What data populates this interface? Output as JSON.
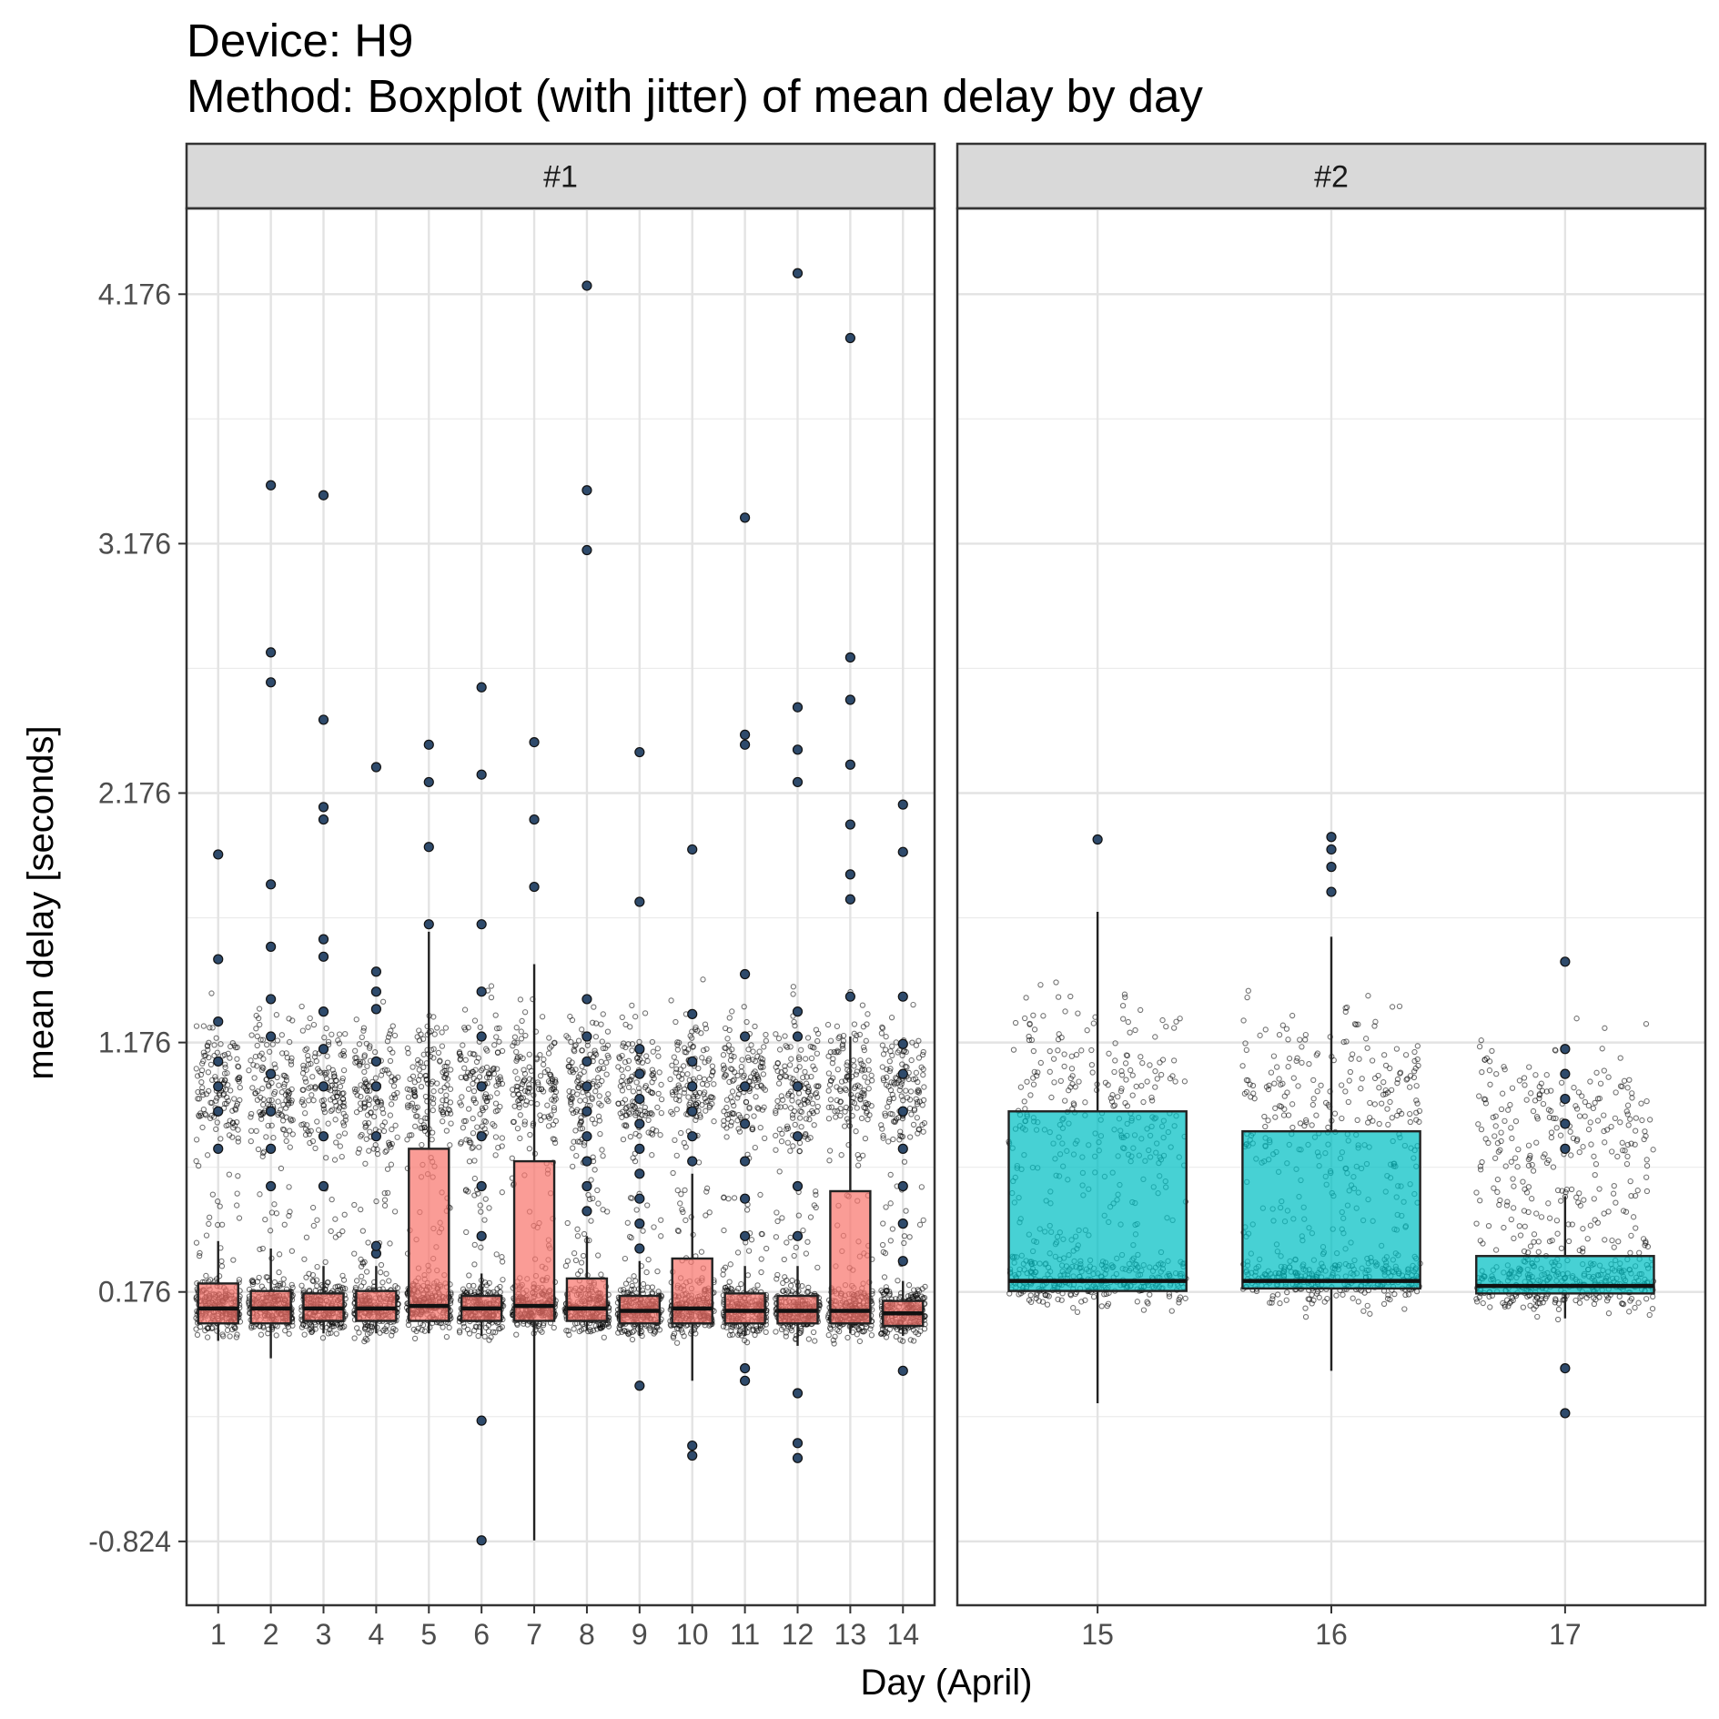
{
  "chart_data": {
    "type": "boxplot",
    "title": "Device: H9",
    "subtitle": "Method: Boxplot (with jitter) of mean delay by day",
    "xlabel": "Day (April)",
    "ylabel": "mean delay [seconds]",
    "ylim": [
      -1.08,
      4.52
    ],
    "yticks": [
      -0.824,
      0.176,
      1.176,
      2.176,
      3.176,
      4.176
    ],
    "ytick_labels": [
      "-0.824",
      "0.176",
      "1.176",
      "2.176",
      "3.176",
      "4.176"
    ],
    "grid": true,
    "colors": {
      "panel1_fill": "#F8766D",
      "panel2_fill": "#00BFC4",
      "outlier": "#2E4A6B",
      "strip_bg": "#D9D9D9"
    },
    "panels": [
      {
        "label": "#1",
        "fill": "#F8766D",
        "categories": [
          "1",
          "2",
          "3",
          "4",
          "5",
          "6",
          "7",
          "8",
          "9",
          "10",
          "11",
          "12",
          "13",
          "14"
        ],
        "boxes": [
          {
            "day": "1",
            "q1": 0.05,
            "median": 0.11,
            "q3": 0.21,
            "whisker_low": -0.02,
            "whisker_high": 0.38,
            "outliers": [
              0.75,
              0.9,
              1.0,
              1.1,
              1.26,
              1.51,
              1.93
            ]
          },
          {
            "day": "2",
            "q1": 0.05,
            "median": 0.11,
            "q3": 0.18,
            "whisker_low": -0.09,
            "whisker_high": 0.35,
            "outliers": [
              0.6,
              0.75,
              0.9,
              1.05,
              1.2,
              1.35,
              1.56,
              1.81,
              2.62,
              2.74,
              3.41
            ]
          },
          {
            "day": "3",
            "q1": 0.06,
            "median": 0.11,
            "q3": 0.17,
            "whisker_low": 0.01,
            "whisker_high": 0.28,
            "outliers": [
              0.6,
              0.8,
              1.0,
              1.15,
              1.3,
              1.52,
              1.59,
              2.07,
              2.12,
              2.47,
              3.37
            ]
          },
          {
            "day": "4",
            "q1": 0.06,
            "median": 0.11,
            "q3": 0.18,
            "whisker_low": 0.01,
            "whisker_high": 0.28,
            "outliers": [
              0.33,
              0.36,
              0.8,
              1.0,
              1.1,
              1.31,
              1.38,
              1.46,
              2.28
            ]
          },
          {
            "day": "5",
            "q1": 0.06,
            "median": 0.12,
            "q3": 0.75,
            "whisker_low": 0.01,
            "whisker_high": 1.62,
            "outliers": [
              1.65,
              1.96,
              2.22,
              2.37
            ]
          },
          {
            "day": "6",
            "q1": 0.06,
            "median": 0.11,
            "q3": 0.16,
            "whisker_low": 0.0,
            "whisker_high": 0.25,
            "outliers": [
              0.4,
              0.6,
              0.8,
              1.0,
              1.2,
              1.38,
              1.65,
              2.25,
              2.6,
              -0.34,
              -0.82
            ]
          },
          {
            "day": "7",
            "q1": 0.06,
            "median": 0.12,
            "q3": 0.7,
            "whisker_low": -0.82,
            "whisker_high": 1.49,
            "outliers": [
              1.8,
              2.07,
              2.38
            ]
          },
          {
            "day": "8",
            "q1": 0.06,
            "median": 0.11,
            "q3": 0.23,
            "whisker_low": 0.02,
            "whisker_high": 0.4,
            "outliers": [
              0.5,
              0.6,
              0.7,
              0.8,
              0.9,
              1.0,
              1.1,
              1.2,
              1.35,
              3.15,
              3.39,
              4.21
            ]
          },
          {
            "day": "9",
            "q1": 0.05,
            "median": 0.1,
            "q3": 0.16,
            "whisker_low": 0.0,
            "whisker_high": 0.3,
            "outliers": [
              0.35,
              0.45,
              0.55,
              0.65,
              0.75,
              0.85,
              0.95,
              1.05,
              1.15,
              1.74,
              2.34,
              -0.2
            ]
          },
          {
            "day": "10",
            "q1": 0.05,
            "median": 0.11,
            "q3": 0.31,
            "whisker_low": -0.18,
            "whisker_high": 0.65,
            "outliers": [
              0.7,
              0.8,
              0.9,
              1.0,
              1.1,
              1.29,
              1.95,
              -0.44,
              -0.48
            ]
          },
          {
            "day": "11",
            "q1": 0.05,
            "median": 0.1,
            "q3": 0.17,
            "whisker_low": 0.0,
            "whisker_high": 0.28,
            "outliers": [
              0.4,
              0.55,
              0.7,
              0.85,
              1.0,
              1.2,
              1.45,
              2.37,
              2.41,
              3.28,
              -0.13,
              -0.18
            ]
          },
          {
            "day": "12",
            "q1": 0.05,
            "median": 0.1,
            "q3": 0.16,
            "whisker_low": -0.04,
            "whisker_high": 0.28,
            "outliers": [
              0.4,
              0.6,
              0.8,
              1.0,
              1.2,
              1.3,
              2.22,
              2.35,
              2.52,
              4.26,
              -0.23,
              -0.43,
              -0.49
            ]
          },
          {
            "day": "13",
            "q1": 0.05,
            "median": 0.1,
            "q3": 0.58,
            "whisker_low": 0.01,
            "whisker_high": 1.2,
            "outliers": [
              1.36,
              1.75,
              1.85,
              2.05,
              2.29,
              2.55,
              2.72,
              4.0
            ]
          },
          {
            "day": "14",
            "q1": 0.04,
            "median": 0.09,
            "q3": 0.14,
            "whisker_low": 0.0,
            "whisker_high": 0.22,
            "outliers": [
              0.3,
              0.45,
              0.6,
              0.75,
              0.9,
              1.05,
              1.17,
              1.36,
              1.94,
              2.13,
              -0.14
            ]
          }
        ]
      },
      {
        "label": "#2",
        "fill": "#00BFC4",
        "categories": [
          "15",
          "16",
          "17"
        ],
        "boxes": [
          {
            "day": "15",
            "q1": 0.18,
            "median": 0.22,
            "q3": 0.9,
            "whisker_low": -0.27,
            "whisker_high": 1.7,
            "outliers": [
              1.99
            ]
          },
          {
            "day": "16",
            "q1": 0.19,
            "median": 0.22,
            "q3": 0.82,
            "whisker_low": -0.14,
            "whisker_high": 1.6,
            "outliers": [
              1.78,
              1.88,
              1.95,
              2.0
            ]
          },
          {
            "day": "17",
            "q1": 0.17,
            "median": 0.2,
            "q3": 0.32,
            "whisker_low": 0.07,
            "whisker_high": 0.56,
            "outliers": [
              0.75,
              0.85,
              0.95,
              1.05,
              1.15,
              1.5,
              -0.13,
              -0.31
            ]
          }
        ]
      }
    ]
  }
}
